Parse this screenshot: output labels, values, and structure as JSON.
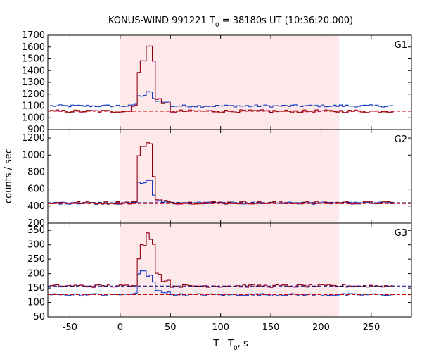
{
  "title": {
    "main": "KONUS-WIND 991221 T",
    "sub": "0",
    "rest": " = 38180s UT (10:36:20.000)"
  },
  "xlabel": {
    "main": "T - T",
    "sub": "0",
    "rest": ", s"
  },
  "ylabel": "counts / sec",
  "colors": {
    "shade": "#fde8ea",
    "dark_red": "#8b0000",
    "red_dashed": "#cc0000",
    "blue": "#2233bb",
    "light_blue": "#66b8f0",
    "pink": "#f070d0",
    "navy_dashed": "#000080"
  },
  "chart_data": {
    "type": "line",
    "step": true,
    "shaded_interval": [
      0,
      218
    ],
    "xlim": [
      -72,
      290
    ],
    "xticks": [
      "-50",
      "0",
      "50",
      "100",
      "150",
      "200",
      "250"
    ],
    "xtick_values": [
      -50,
      0,
      50,
      100,
      150,
      200,
      250
    ],
    "panels": [
      {
        "name": "G1",
        "ylim": [
          900,
          1700
        ],
        "yticks": [
          "900",
          "1000",
          "1100",
          "1200",
          "1300",
          "1400",
          "1500",
          "1600",
          "1700"
        ],
        "ytick_values": [
          900,
          1000,
          1100,
          1200,
          1300,
          1400,
          1500,
          1600,
          1700
        ],
        "background_levels": [
          1100,
          1055
        ],
        "peak_times": [
          10,
          15,
          20,
          25,
          28,
          30,
          33,
          35,
          40,
          50
        ],
        "red_peak": [
          1100,
          1390,
          1480,
          1610,
          1610,
          1480,
          1200,
          1160,
          1120,
          1095
        ],
        "red_baseline": 1055,
        "blue_peak": [
          1110,
          1190,
          1185,
          1220,
          1220,
          1160,
          1150,
          1140,
          1130,
          1115
        ],
        "blue_baseline": 1100
      },
      {
        "name": "G2",
        "ylim": [
          200,
          1300
        ],
        "yticks": [
          "200",
          "400",
          "600",
          "800",
          "1000",
          "1200"
        ],
        "ytick_values": [
          200,
          400,
          600,
          800,
          1000,
          1200
        ],
        "background_levels": [
          440,
          430
        ],
        "peak_times": [
          10,
          15,
          20,
          25,
          28,
          30,
          33,
          35,
          40,
          50
        ],
        "red_peak": [
          450,
          1000,
          1100,
          1140,
          1140,
          750,
          520,
          480,
          460,
          445
        ],
        "red_baseline": 440,
        "blue_peak": [
          450,
          680,
          670,
          700,
          700,
          530,
          480,
          460,
          450,
          440
        ],
        "blue_baseline": 435
      },
      {
        "name": "G3",
        "ylim": [
          50,
          375
        ],
        "yticks": [
          "50",
          "100",
          "150",
          "200",
          "250",
          "300",
          "350"
        ],
        "ytick_values": [
          50,
          100,
          150,
          200,
          250,
          300,
          350
        ],
        "background_levels": [
          157,
          127
        ],
        "peak_times": [
          10,
          15,
          20,
          25,
          28,
          30,
          33,
          35,
          40,
          50
        ],
        "red_peak": [
          160,
          250,
          300,
          340,
          320,
          300,
          230,
          200,
          175,
          165
        ],
        "red_baseline": 157,
        "blue_peak": [
          130,
          200,
          210,
          190,
          195,
          170,
          150,
          140,
          135,
          130
        ],
        "blue_baseline": 127
      }
    ]
  }
}
